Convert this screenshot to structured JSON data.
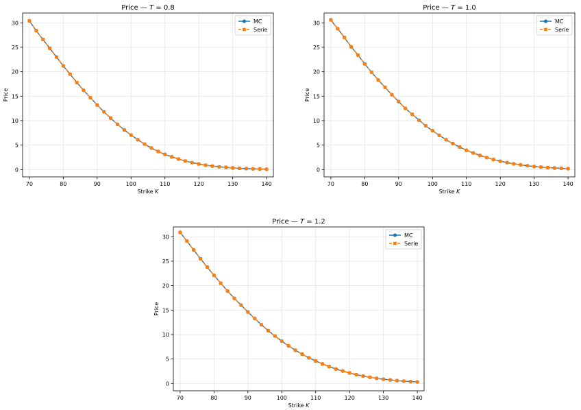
{
  "colors": {
    "mc": "#1f77b4",
    "serie": "#ff7f0e",
    "grid": "#e6e6e6",
    "axis": "#000000"
  },
  "chart_data": [
    {
      "type": "line",
      "title_prefix": "Price — ",
      "title_var": "T",
      "title_value": " = 0.8",
      "xlabel_prefix": "Strike ",
      "xlabel_var": "K",
      "ylabel": "Price",
      "xlim": [
        68,
        142
      ],
      "ylim": [
        -1.5,
        32
      ],
      "xticks": [
        "70",
        "80",
        "90",
        "100",
        "110",
        "120",
        "130",
        "140"
      ],
      "yticks": [
        "0",
        "5",
        "10",
        "15",
        "20",
        "25",
        "30"
      ],
      "grid": true,
      "legend_position": "top-right",
      "x": [
        70,
        72,
        74,
        76,
        78,
        80,
        82,
        84,
        86,
        88,
        90,
        92,
        94,
        96,
        98,
        100,
        102,
        104,
        106,
        108,
        110,
        112,
        114,
        116,
        118,
        120,
        122,
        124,
        126,
        128,
        130,
        132,
        134,
        136,
        138,
        140
      ],
      "series": [
        {
          "name": "MC",
          "values": [
            30.4,
            28.4,
            26.6,
            24.8,
            23.0,
            21.2,
            19.5,
            17.8,
            16.2,
            14.7,
            13.2,
            11.8,
            10.5,
            9.25,
            8.1,
            7.05,
            6.1,
            5.2,
            4.4,
            3.7,
            3.1,
            2.6,
            2.15,
            1.75,
            1.42,
            1.14,
            0.9,
            0.71,
            0.56,
            0.44,
            0.34,
            0.26,
            0.2,
            0.15,
            0.11,
            0.08
          ]
        },
        {
          "name": "Serie",
          "values": [
            30.4,
            28.4,
            26.6,
            24.8,
            23.0,
            21.2,
            19.5,
            17.8,
            16.2,
            14.7,
            13.2,
            11.8,
            10.5,
            9.25,
            8.1,
            7.05,
            6.1,
            5.2,
            4.4,
            3.7,
            3.1,
            2.6,
            2.15,
            1.75,
            1.42,
            1.14,
            0.9,
            0.71,
            0.56,
            0.44,
            0.34,
            0.26,
            0.2,
            0.15,
            0.11,
            0.08
          ]
        }
      ]
    },
    {
      "type": "line",
      "title_prefix": "Price — ",
      "title_var": "T",
      "title_value": " = 1.0",
      "xlabel_prefix": "Strike ",
      "xlabel_var": "K",
      "ylabel": "Price",
      "xlim": [
        68,
        142
      ],
      "ylim": [
        -1.5,
        32
      ],
      "xticks": [
        "70",
        "80",
        "90",
        "100",
        "110",
        "120",
        "130",
        "140"
      ],
      "yticks": [
        "0",
        "5",
        "10",
        "15",
        "20",
        "25",
        "30"
      ],
      "grid": true,
      "legend_position": "top-right",
      "x": [
        70,
        72,
        74,
        76,
        78,
        80,
        82,
        84,
        86,
        88,
        90,
        92,
        94,
        96,
        98,
        100,
        102,
        104,
        106,
        108,
        110,
        112,
        114,
        116,
        118,
        120,
        122,
        124,
        126,
        128,
        130,
        132,
        134,
        136,
        138,
        140
      ],
      "series": [
        {
          "name": "MC",
          "values": [
            30.6,
            28.8,
            27.0,
            25.1,
            23.4,
            21.6,
            19.9,
            18.3,
            16.8,
            15.3,
            13.9,
            12.5,
            11.3,
            10.1,
            8.95,
            7.95,
            7.0,
            6.1,
            5.3,
            4.6,
            3.95,
            3.4,
            2.9,
            2.45,
            2.05,
            1.7,
            1.42,
            1.17,
            0.96,
            0.78,
            0.63,
            0.5,
            0.4,
            0.32,
            0.25,
            0.19
          ]
        },
        {
          "name": "Serie",
          "values": [
            30.6,
            28.8,
            27.0,
            25.1,
            23.4,
            21.6,
            19.9,
            18.3,
            16.8,
            15.3,
            13.9,
            12.5,
            11.3,
            10.1,
            8.95,
            7.95,
            7.0,
            6.1,
            5.3,
            4.6,
            3.95,
            3.4,
            2.9,
            2.45,
            2.05,
            1.7,
            1.42,
            1.17,
            0.96,
            0.78,
            0.63,
            0.5,
            0.4,
            0.32,
            0.25,
            0.19
          ]
        }
      ]
    },
    {
      "type": "line",
      "title_prefix": "Price — ",
      "title_var": "T",
      "title_value": " = 1.2",
      "xlabel_prefix": "Strike ",
      "xlabel_var": "K",
      "ylabel": "Price",
      "xlim": [
        68,
        142
      ],
      "ylim": [
        -1.5,
        32
      ],
      "xticks": [
        "70",
        "80",
        "90",
        "100",
        "110",
        "120",
        "130",
        "140"
      ],
      "yticks": [
        "0",
        "5",
        "10",
        "15",
        "20",
        "25",
        "30"
      ],
      "grid": true,
      "legend_position": "top-right",
      "x": [
        70,
        72,
        74,
        76,
        78,
        80,
        82,
        84,
        86,
        88,
        90,
        92,
        94,
        96,
        98,
        100,
        102,
        104,
        106,
        108,
        110,
        112,
        114,
        116,
        118,
        120,
        122,
        124,
        126,
        128,
        130,
        132,
        134,
        136,
        138,
        140
      ],
      "series": [
        {
          "name": "MC",
          "values": [
            30.9,
            29.1,
            27.3,
            25.5,
            23.8,
            22.1,
            20.5,
            18.9,
            17.4,
            16.0,
            14.6,
            13.3,
            12.0,
            10.8,
            9.7,
            8.65,
            7.7,
            6.8,
            6.0,
            5.25,
            4.6,
            4.0,
            3.45,
            2.95,
            2.55,
            2.15,
            1.8,
            1.52,
            1.27,
            1.05,
            0.87,
            0.72,
            0.59,
            0.48,
            0.39,
            0.31
          ]
        },
        {
          "name": "Serie",
          "values": [
            30.9,
            29.1,
            27.3,
            25.5,
            23.8,
            22.1,
            20.5,
            18.9,
            17.4,
            16.0,
            14.6,
            13.3,
            12.0,
            10.8,
            9.7,
            8.65,
            7.7,
            6.8,
            6.0,
            5.25,
            4.6,
            4.0,
            3.45,
            2.95,
            2.55,
            2.15,
            1.8,
            1.52,
            1.27,
            1.05,
            0.87,
            0.72,
            0.59,
            0.48,
            0.39,
            0.31
          ]
        }
      ]
    }
  ]
}
